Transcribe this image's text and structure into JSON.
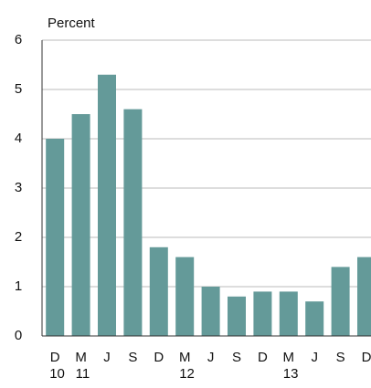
{
  "chart_data": {
    "type": "bar",
    "ylabel": "Percent",
    "categories": [
      "D",
      "M",
      "J",
      "S",
      "D",
      "M",
      "J",
      "S",
      "D",
      "M",
      "J",
      "S",
      "D"
    ],
    "year_labels": [
      "10",
      "11",
      null,
      null,
      null,
      "12",
      null,
      null,
      null,
      "13",
      null,
      null,
      null
    ],
    "values": [
      4.0,
      4.5,
      5.3,
      4.6,
      1.8,
      1.6,
      1.0,
      0.8,
      0.9,
      0.9,
      0.7,
      1.4,
      1.6
    ],
    "color": "#649a99",
    "ylim": [
      0,
      6
    ],
    "yticks": [
      0,
      1,
      2,
      3,
      4,
      5,
      6
    ],
    "grid": true
  }
}
